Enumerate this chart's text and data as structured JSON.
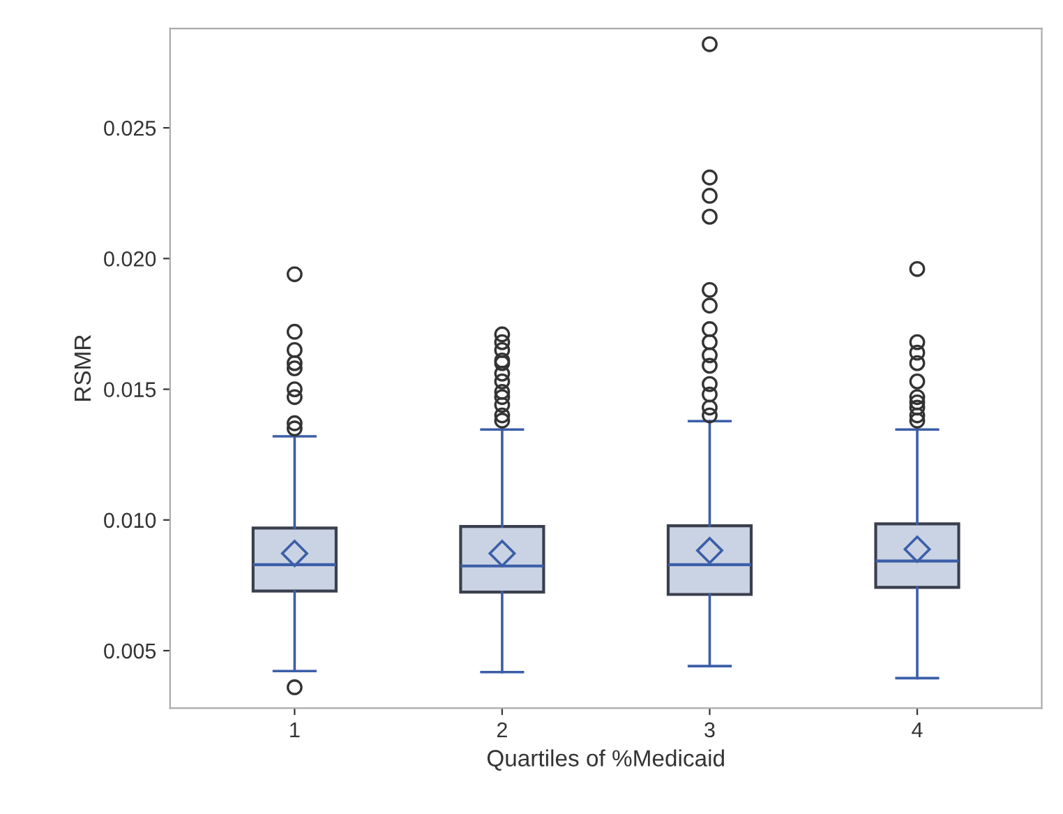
{
  "chart_data": {
    "type": "box",
    "xlabel": "Quartiles of %Medicaid",
    "ylabel": "RSMR",
    "categories": [
      "1",
      "2",
      "3",
      "4"
    ],
    "boxes": [
      {
        "low": 0.00422,
        "q1": 0.00728,
        "median": 0.00829,
        "q3": 0.00969,
        "high": 0.0132,
        "mean": 0.00872,
        "outliers": [
          0.0036,
          0.0194,
          0.0172,
          0.0165,
          0.016,
          0.0158,
          0.015,
          0.0147,
          0.0137,
          0.0135
        ]
      },
      {
        "low": 0.00418,
        "q1": 0.00724,
        "median": 0.00824,
        "q3": 0.00975,
        "high": 0.01346,
        "mean": 0.00872,
        "outliers": [
          0.0171,
          0.0168,
          0.0165,
          0.0161,
          0.016,
          0.0156,
          0.0153,
          0.0149,
          0.0147,
          0.0144,
          0.014,
          0.0138
        ]
      },
      {
        "low": 0.00441,
        "q1": 0.00715,
        "median": 0.00829,
        "q3": 0.00978,
        "high": 0.01378,
        "mean": 0.00883,
        "outliers": [
          0.0282,
          0.0231,
          0.0224,
          0.0216,
          0.0188,
          0.0182,
          0.0173,
          0.0168,
          0.0163,
          0.0159,
          0.0152,
          0.0148,
          0.0143,
          0.014
        ]
      },
      {
        "low": 0.00395,
        "q1": 0.00742,
        "median": 0.00843,
        "q3": 0.00985,
        "high": 0.01346,
        "mean": 0.00888,
        "outliers": [
          0.0196,
          0.0168,
          0.0164,
          0.016,
          0.0153,
          0.0147,
          0.0145,
          0.0143,
          0.014,
          0.0138
        ]
      }
    ],
    "color": "#cad3e3",
    "ylim": [
      0.0028,
      0.0288
    ],
    "yticks": [
      {
        "value": 0.005,
        "label": "0.005"
      },
      {
        "value": 0.01,
        "label": "0.010"
      },
      {
        "value": 0.015,
        "label": "0.015"
      },
      {
        "value": 0.02,
        "label": "0.020"
      },
      {
        "value": 0.025,
        "label": "0.025"
      }
    ],
    "grid": false,
    "legend": false
  }
}
